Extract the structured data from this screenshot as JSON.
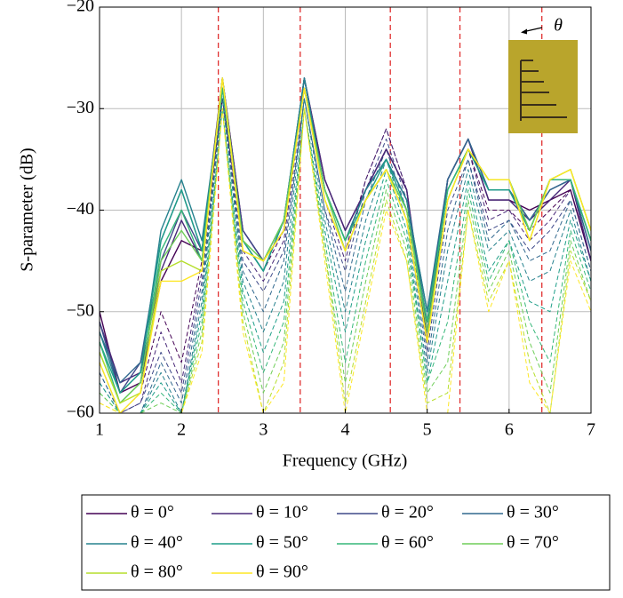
{
  "chart_data": {
    "type": "line",
    "xlabel": "Frequency (GHz)",
    "ylabel": "S-parameter (dB)",
    "annotation": "θ",
    "x": [
      1,
      1.25,
      1.5,
      1.75,
      2,
      2.25,
      2.5,
      2.75,
      3,
      3.25,
      3.5,
      3.75,
      4,
      4.25,
      4.5,
      4.75,
      5,
      5.25,
      5.5,
      5.75,
      6,
      6.25,
      6.5,
      6.75,
      7
    ],
    "xlim": [
      1,
      7
    ],
    "xticks": [
      1,
      2,
      3,
      4,
      5,
      6,
      7
    ],
    "ylim": [
      -60,
      -20
    ],
    "yticks": [
      {
        "value": -60,
        "label": "−60"
      },
      {
        "value": -50,
        "label": "−50"
      },
      {
        "value": -40,
        "label": "−40"
      },
      {
        "value": -30,
        "label": "−30"
      },
      {
        "value": -20,
        "label": "−20"
      }
    ],
    "grid": true,
    "vlines": [
      2.45,
      3.45,
      4.55,
      5.4,
      6.4
    ],
    "vline_color": "#e03030",
    "series": [
      {
        "name": "θ = 0°",
        "color": "#440154",
        "values": [
          -50,
          -58,
          -57,
          -47,
          -43,
          -44,
          -27,
          -42,
          -45,
          -42,
          -27,
          -37,
          -42,
          -38,
          -34,
          -38,
          -53,
          -37,
          -33,
          -39,
          -39,
          -40,
          -39,
          -38,
          -45
        ]
      },
      {
        "name": "θ = 10°",
        "color": "#482878",
        "values": [
          -51,
          -57,
          -56,
          -46,
          -41,
          -45,
          -27,
          -42,
          -45,
          -42,
          -27,
          -37,
          -42,
          -38,
          -34,
          -38,
          -52,
          -37,
          -33,
          -39,
          -39,
          -41,
          -39,
          -37,
          -45
        ]
      },
      {
        "name": "θ = 20°",
        "color": "#3e4989",
        "values": [
          -51,
          -58,
          -55,
          -45,
          -40,
          -44,
          -28,
          -42,
          -45,
          -41,
          -27,
          -38,
          -43,
          -38,
          -35,
          -39,
          -51,
          -37,
          -33,
          -38,
          -38,
          -41,
          -38,
          -37,
          -44
        ]
      },
      {
        "name": "θ = 30°",
        "color": "#31688e",
        "values": [
          -52,
          -57,
          -55,
          -43,
          -38,
          -44,
          -28,
          -43,
          -46,
          -41,
          -27,
          -38,
          -43,
          -38,
          -35,
          -39,
          -50,
          -37,
          -33,
          -38,
          -38,
          -41,
          -38,
          -37,
          -44
        ]
      },
      {
        "name": "θ = 40°",
        "color": "#26828e",
        "values": [
          -52,
          -58,
          -56,
          -42,
          -37,
          -43,
          -28,
          -43,
          -46,
          -41,
          -27,
          -38,
          -43,
          -38,
          -35,
          -39,
          -50,
          -38,
          -34,
          -38,
          -38,
          -42,
          -37,
          -37,
          -43
        ]
      },
      {
        "name": "θ = 50°",
        "color": "#1f9e89",
        "values": [
          -53,
          -58,
          -56,
          -43,
          -38,
          -44,
          -28,
          -43,
          -46,
          -41,
          -28,
          -38,
          -43,
          -39,
          -35,
          -40,
          -51,
          -38,
          -34,
          -38,
          -38,
          -42,
          -37,
          -37,
          -43
        ]
      },
      {
        "name": "θ = 60°",
        "color": "#35b779",
        "values": [
          -53,
          -59,
          -57,
          -44,
          -40,
          -45,
          -28,
          -43,
          -45,
          -41,
          -28,
          -38,
          -43,
          -39,
          -36,
          -40,
          -51,
          -38,
          -34,
          -37,
          -37,
          -42,
          -37,
          -37,
          -43
        ]
      },
      {
        "name": "θ = 70°",
        "color": "#6ece58",
        "values": [
          -54,
          -59,
          -57,
          -45,
          -42,
          -45,
          -27,
          -43,
          -45,
          -41,
          -28,
          -38,
          -44,
          -39,
          -36,
          -40,
          -52,
          -39,
          -34,
          -37,
          -37,
          -42,
          -37,
          -36,
          -42
        ]
      },
      {
        "name": "θ = 80°",
        "color": "#b5de2b",
        "values": [
          -54,
          -59,
          -58,
          -46,
          -45,
          -46,
          -27,
          -44,
          -45,
          -42,
          -28,
          -39,
          -44,
          -39,
          -36,
          -41,
          -53,
          -39,
          -34,
          -37,
          -37,
          -43,
          -37,
          -36,
          -42
        ]
      },
      {
        "name": "θ = 90°",
        "color": "#fde725",
        "values": [
          -55,
          -60,
          -58,
          -47,
          -47,
          -46,
          -27,
          -44,
          -45,
          -42,
          -28,
          -39,
          -44,
          -39,
          -36,
          -41,
          -53,
          -39,
          -34,
          -37,
          -37,
          -43,
          -37,
          -36,
          -42
        ]
      },
      {
        "color": "#440154",
        "dashed": true,
        "values": [
          -55,
          -60,
          -58,
          -50,
          -55,
          -45,
          -29,
          -43,
          -46,
          -42,
          -28,
          -39,
          -44,
          -37,
          -32,
          -38,
          -52,
          -38,
          -34,
          -40,
          -40,
          -42,
          -40,
          -38,
          -45
        ]
      },
      {
        "color": "#482878",
        "dashed": true,
        "values": [
          -55,
          -60,
          -59,
          -52,
          -57,
          -46,
          -29,
          -44,
          -47,
          -43,
          -28,
          -39,
          -45,
          -37,
          -32,
          -38,
          -53,
          -39,
          -34,
          -41,
          -40,
          -43,
          -41,
          -38,
          -45
        ]
      },
      {
        "color": "#3e4989",
        "dashed": true,
        "values": [
          -56,
          -60,
          -59,
          -54,
          -58,
          -47,
          -29,
          -45,
          -48,
          -44,
          -29,
          -40,
          -46,
          -38,
          -33,
          -39,
          -54,
          -40,
          -35,
          -42,
          -41,
          -44,
          -42,
          -39,
          -46
        ]
      },
      {
        "color": "#31688e",
        "dashed": true,
        "values": [
          -56,
          -60,
          -60,
          -55,
          -59,
          -48,
          -29,
          -46,
          -50,
          -45,
          -29,
          -40,
          -48,
          -39,
          -34,
          -40,
          -55,
          -42,
          -35,
          -43,
          -41,
          -45,
          -44,
          -39,
          -46
        ]
      },
      {
        "color": "#26828e",
        "dashed": true,
        "values": [
          -57,
          -60,
          -60,
          -56,
          -60,
          -49,
          -29,
          -47,
          -52,
          -47,
          -29,
          -41,
          -50,
          -41,
          -35,
          -41,
          -56,
          -44,
          -36,
          -44,
          -42,
          -47,
          -46,
          -40,
          -47
        ]
      },
      {
        "color": "#1f9e89",
        "dashed": true,
        "values": [
          -57,
          -60,
          -60,
          -57,
          -60,
          -50,
          -30,
          -48,
          -54,
          -49,
          -30,
          -42,
          -52,
          -43,
          -36,
          -42,
          -57,
          -47,
          -37,
          -46,
          -43,
          -49,
          -50,
          -41,
          -47
        ]
      },
      {
        "color": "#35b779",
        "dashed": true,
        "values": [
          -58,
          -60,
          -60,
          -58,
          -60,
          -51,
          -30,
          -49,
          -56,
          -51,
          -30,
          -43,
          -55,
          -45,
          -37,
          -43,
          -57,
          -51,
          -38,
          -47,
          -43,
          -51,
          -55,
          -42,
          -48
        ]
      },
      {
        "color": "#6ece58",
        "dashed": true,
        "values": [
          -58,
          -60,
          -60,
          -59,
          -60,
          -52,
          -30,
          -50,
          -58,
          -53,
          -30,
          -44,
          -57,
          -47,
          -38,
          -44,
          -58,
          -55,
          -39,
          -48,
          -44,
          -53,
          -58,
          -43,
          -49
        ]
      },
      {
        "color": "#b5de2b",
        "dashed": true,
        "values": [
          -59,
          -60,
          -60,
          -60,
          -60,
          -53,
          -30,
          -51,
          -60,
          -55,
          -30,
          -44,
          -59,
          -49,
          -39,
          -45,
          -59,
          -58,
          -40,
          -49,
          -45,
          -55,
          -60,
          -44,
          -49
        ]
      },
      {
        "color": "#fde725",
        "dashed": true,
        "values": [
          -59,
          -60,
          -60,
          -60,
          -60,
          -54,
          -30,
          -52,
          -60,
          -57,
          -30,
          -45,
          -60,
          -50,
          -40,
          -45,
          -60,
          -60,
          -40,
          -50,
          -45,
          -57,
          -60,
          -45,
          -50
        ]
      }
    ]
  }
}
